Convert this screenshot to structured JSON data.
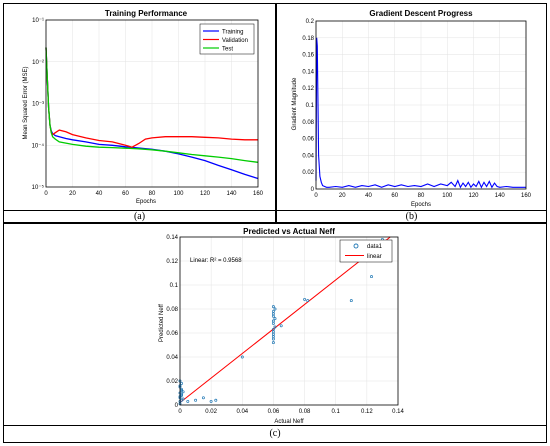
{
  "captions": {
    "a": "(a)",
    "b": "(b)",
    "c": "(c)"
  },
  "colors": {
    "training": "#0000ff",
    "validation": "#ff0000",
    "test": "#00cc00",
    "gradient": "#0000ff",
    "scatter": "#1f77b4",
    "fit": "#ff0000"
  },
  "chart_data": [
    {
      "type": "line",
      "title": "Training Performance",
      "xlabel": "Epochs",
      "ylabel": "Mean Squared Error (MSE)",
      "yscale": "log",
      "xlim": [
        0,
        160
      ],
      "ylim": [
        1e-05,
        0.1
      ],
      "x_ticks": [
        "0",
        "20",
        "40",
        "60",
        "80",
        "100",
        "120",
        "140",
        "160"
      ],
      "y_ticks": [
        "10⁻⁵",
        "10⁻⁴",
        "10⁻³",
        "10⁻²",
        "10⁻¹"
      ],
      "legend": {
        "position": "top-right",
        "entries": [
          "Training",
          "Validation",
          "Test"
        ]
      },
      "series": [
        {
          "name": "Training",
          "x": [
            0,
            1,
            2,
            3,
            4,
            5,
            7,
            10,
            15,
            20,
            30,
            40,
            50,
            60,
            70,
            80,
            90,
            100,
            110,
            120,
            130,
            140,
            150,
            160
          ],
          "y": [
            0.022,
            0.004,
            0.0008,
            0.0003,
            0.00022,
            0.00019,
            0.00017,
            0.00016,
            0.000145,
            0.000135,
            0.00012,
            0.000105,
            0.0001,
            9.2e-05,
            8.6e-05,
            8e-05,
            7.2e-05,
            6.2e-05,
            5.2e-05,
            4.3e-05,
            3.3e-05,
            2.6e-05,
            2e-05,
            1.6e-05
          ]
        },
        {
          "name": "Validation",
          "x": [
            0,
            1,
            2,
            3,
            4,
            5,
            7,
            10,
            15,
            20,
            30,
            40,
            50,
            60,
            65,
            70,
            75,
            80,
            90,
            100,
            110,
            120,
            130,
            140,
            150,
            160
          ],
          "y": [
            0.022,
            0.004,
            0.0008,
            0.0003,
            0.0002,
            0.00018,
            0.0002,
            0.00023,
            0.00021,
            0.00018,
            0.00015,
            0.00013,
            0.00012,
            0.0001,
            9e-05,
            0.00011,
            0.00014,
            0.00015,
            0.00016,
            0.00016,
            0.00016,
            0.000155,
            0.00015,
            0.00014,
            0.000135,
            0.000135
          ]
        },
        {
          "name": "Test",
          "x": [
            0,
            1,
            2,
            3,
            4,
            5,
            7,
            10,
            20,
            30,
            40,
            50,
            60,
            70,
            80,
            90,
            100,
            110,
            120,
            130,
            140,
            150,
            160
          ],
          "y": [
            0.022,
            0.004,
            0.0008,
            0.0003,
            0.0002,
            0.00016,
            0.00014,
            0.00012,
            0.000105,
            9.5e-05,
            9e-05,
            8.8e-05,
            8.5e-05,
            8.2e-05,
            7.8e-05,
            7.2e-05,
            6.6e-05,
            6e-05,
            5.6e-05,
            5.2e-05,
            4.8e-05,
            4.3e-05,
            3.9e-05
          ]
        }
      ]
    },
    {
      "type": "line",
      "title": "Gradient Descent Progress",
      "xlabel": "Epochs",
      "ylabel": "Gradient Magnitude",
      "xlim": [
        0,
        160
      ],
      "ylim": [
        0,
        0.2
      ],
      "x_ticks": [
        "0",
        "20",
        "40",
        "60",
        "80",
        "100",
        "120",
        "140",
        "160"
      ],
      "y_ticks": [
        "0",
        "0.02",
        "0.04",
        "0.06",
        "0.08",
        "0.1",
        "0.12",
        "0.14",
        "0.16",
        "0.18",
        "0.2"
      ],
      "series": [
        {
          "name": "",
          "x": [
            0,
            0.5,
            1,
            1.5,
            2,
            3,
            4,
            5,
            8,
            10,
            15,
            20,
            25,
            30,
            35,
            40,
            45,
            50,
            55,
            60,
            65,
            70,
            75,
            80,
            85,
            90,
            95,
            100,
            103,
            106,
            108,
            110,
            112,
            114,
            116,
            118,
            120,
            122,
            124,
            126,
            128,
            130,
            132,
            134,
            136,
            138,
            140,
            145,
            150,
            155,
            160
          ],
          "y": [
            0.01,
            0.18,
            0.17,
            0.1,
            0.04,
            0.015,
            0.008,
            0.004,
            0.002,
            0.002,
            0.003,
            0.002,
            0.004,
            0.002,
            0.004,
            0.003,
            0.005,
            0.002,
            0.005,
            0.003,
            0.005,
            0.003,
            0.004,
            0.003,
            0.006,
            0.003,
            0.006,
            0.004,
            0.008,
            0.003,
            0.01,
            0.002,
            0.007,
            0.003,
            0.008,
            0.002,
            0.006,
            0.003,
            0.009,
            0.002,
            0.008,
            0.003,
            0.009,
            0.002,
            0.007,
            0.003,
            0.002,
            0.003,
            0.002,
            0.002,
            0.002
          ]
        }
      ]
    },
    {
      "type": "scatter",
      "title": "Predicted vs Actual Neff",
      "xlabel": "Actual Neff",
      "ylabel": "Predicted Neff",
      "xlim": [
        0,
        0.14
      ],
      "ylim": [
        0,
        0.14
      ],
      "x_ticks": [
        "0",
        "0.02",
        "0.04",
        "0.06",
        "0.08",
        "0.1",
        "0.12",
        "0.14"
      ],
      "y_ticks": [
        "0",
        "0.02",
        "0.04",
        "0.06",
        "0.08",
        "0.1",
        "0.12",
        "0.14"
      ],
      "legend": {
        "position": "top-right",
        "entries": [
          "data1",
          "linear"
        ]
      },
      "annotation": "Linear: R² = 0.9568",
      "series": [
        {
          "name": "data1",
          "x": [
            0,
            0,
            0,
            0.001,
            0,
            0.001,
            0,
            0.002,
            0.001,
            0,
            0.001,
            0,
            0.002,
            0.001,
            0,
            0.001,
            0.005,
            0.01,
            0.015,
            0.02,
            0.023,
            0.04,
            0.06,
            0.06,
            0.06,
            0.06,
            0.06,
            0.06,
            0.061,
            0.06,
            0.06,
            0.061,
            0.06,
            0.06,
            0.06,
            0.061,
            0.06,
            0.065,
            0.08,
            0.082,
            0.11,
            0.123,
            0.13
          ],
          "y": [
            0.003,
            0.006,
            0.01,
            0.012,
            0.015,
            0.018,
            0.02,
            0.005,
            0.008,
            0.001,
            0.013,
            0.016,
            0.011,
            0.004,
            0.007,
            0.009,
            0.003,
            0.004,
            0.006,
            0.003,
            0.004,
            0.04,
            0.052,
            0.055,
            0.057,
            0.059,
            0.061,
            0.063,
            0.065,
            0.068,
            0.07,
            0.072,
            0.074,
            0.076,
            0.078,
            0.08,
            0.082,
            0.066,
            0.088,
            0.087,
            0.087,
            0.107,
            0.138
          ]
        },
        {
          "name": "linear",
          "x": [
            0,
            0.135
          ],
          "y": [
            0.002,
            0.14
          ]
        }
      ]
    }
  ]
}
